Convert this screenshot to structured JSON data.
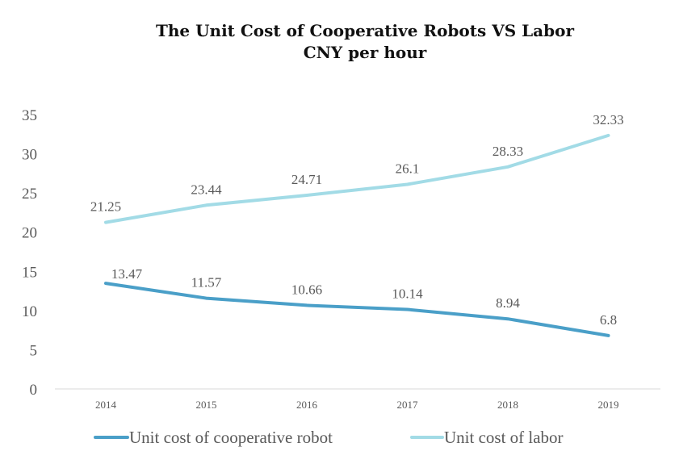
{
  "chart_data": {
    "type": "line",
    "title": "The Unit Cost of Cooperative Robots VS Labor",
    "subtitle": "CNY per hour",
    "xlabel": "",
    "ylabel": "",
    "categories": [
      "2014",
      "2015",
      "2016",
      "2017",
      "2018",
      "2019"
    ],
    "ylim": [
      0,
      35
    ],
    "yticks": [
      "0",
      "5",
      "10",
      "15",
      "20",
      "25",
      "30",
      "35"
    ],
    "grid": false,
    "legend_position": "bottom",
    "series": [
      {
        "name": "Unit cost of cooperative robot",
        "values": [
          13.47,
          11.57,
          10.66,
          10.14,
          8.94,
          6.8
        ],
        "labels": [
          "13.47",
          "11.57",
          "10.66",
          "10.14",
          "8.94",
          "6.8"
        ],
        "color": "#4a9fc8"
      },
      {
        "name": "Unit cost of labor",
        "values": [
          21.25,
          23.44,
          24.71,
          26.1,
          28.33,
          32.33
        ],
        "labels": [
          "21.25",
          "23.44",
          "24.71",
          "26.1",
          "28.33",
          "32.33"
        ],
        "color": "#a2dbe6"
      }
    ]
  }
}
